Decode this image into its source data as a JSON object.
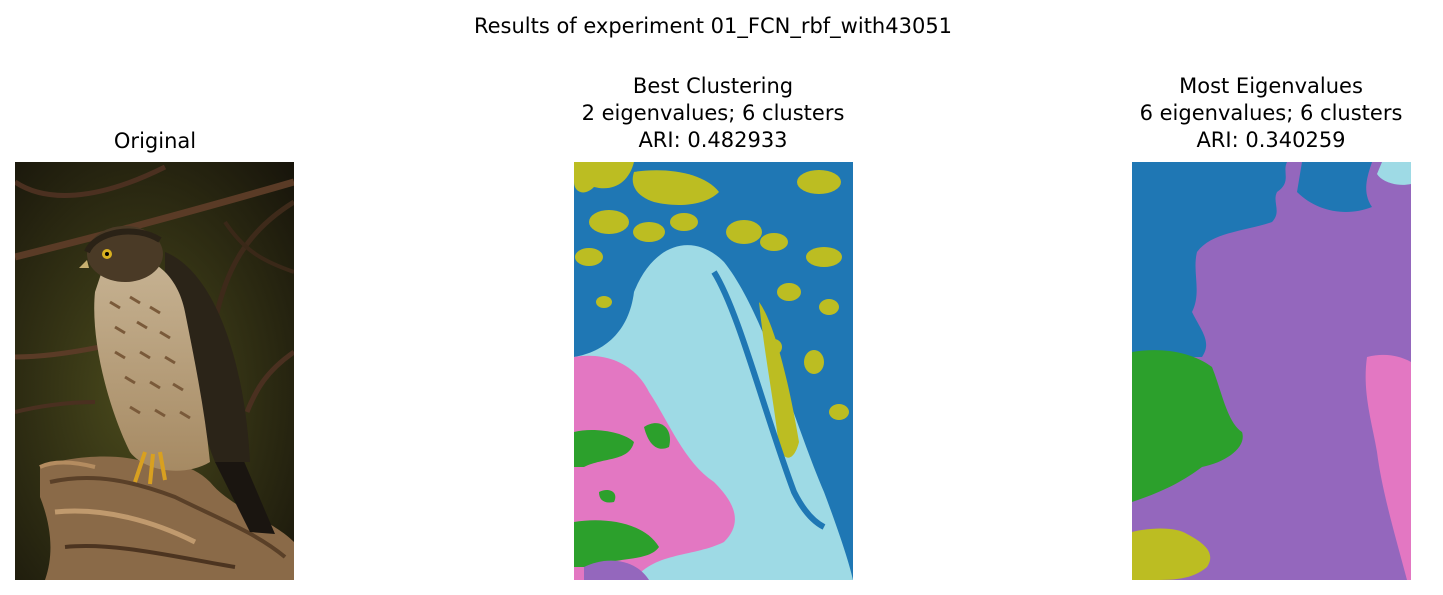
{
  "figure": {
    "suptitle": "Results of experiment 01_FCN_rbf_with43051"
  },
  "panels": [
    {
      "title_lines": [
        "Original"
      ],
      "image": "photo of a hawk perched on a tree stump"
    },
    {
      "title_lines": [
        "Best Clustering",
        "2 eigenvalues; 6 clusters",
        "ARI: 0.482933"
      ],
      "image": "cluster segmentation map"
    },
    {
      "title_lines": [
        "Most Eigenvalues",
        "6 eigenvalues; 6 clusters",
        "ARI: 0.340259"
      ],
      "image": "cluster segmentation map"
    }
  ],
  "colors": {
    "cluster_blue": "#1f77b4",
    "cluster_light_blue": "#9edae5",
    "cluster_olive": "#bcbd22",
    "cluster_pink": "#e377c2",
    "cluster_green": "#2ca02c",
    "cluster_purple": "#9467bd"
  }
}
